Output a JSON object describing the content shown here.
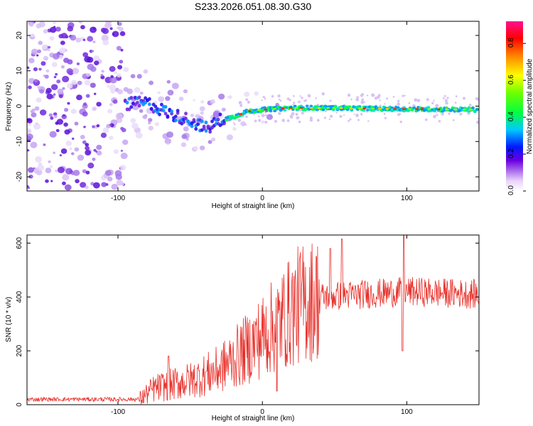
{
  "title": "S233.2026.051.08.30.G30",
  "chart_data": [
    {
      "type": "heatmap",
      "name": "spectrogram",
      "xlabel": "Height of straight line (km)",
      "ylabel": "Frequency (Hz)",
      "xlim": [
        -163,
        150
      ],
      "ylim": [
        -24,
        24
      ],
      "xticks": [
        -100,
        0,
        100
      ],
      "yticks": [
        20,
        10,
        0,
        -10,
        -20
      ],
      "colorbar": {
        "label": "Normalized spectral amplitude",
        "range": [
          0,
          0.92
        ],
        "ticks": [
          "0.0",
          "0.2",
          "0.4",
          "0.6",
          "0.8"
        ]
      },
      "ridge": [
        {
          "x": -95,
          "y": 0.5
        },
        {
          "x": -80,
          "y": 1.0
        },
        {
          "x": -65,
          "y": -2.0
        },
        {
          "x": -50,
          "y": -4.0
        },
        {
          "x": -38,
          "y": -6.5
        },
        {
          "x": -30,
          "y": -4.0
        },
        {
          "x": -20,
          "y": -3.0
        },
        {
          "x": -10,
          "y": -1.5
        },
        {
          "x": 0,
          "y": -1.0
        },
        {
          "x": 20,
          "y": -0.5
        },
        {
          "x": 50,
          "y": -0.5
        },
        {
          "x": 90,
          "y": -0.8
        },
        {
          "x": 150,
          "y": -1.0
        }
      ]
    },
    {
      "type": "line",
      "name": "snr",
      "xlabel": "Height of straight line (km)",
      "ylabel": "SNR (10 * v/v)",
      "xlim": [
        -163,
        150
      ],
      "ylim": [
        0,
        630
      ],
      "xticks": [
        -100,
        0,
        100
      ],
      "yticks": [
        0,
        200,
        400,
        600
      ],
      "color": "#e8302a",
      "trend": [
        {
          "x": -163,
          "y": 20
        },
        {
          "x": -85,
          "y": 20
        },
        {
          "x": -75,
          "y": 60
        },
        {
          "x": -50,
          "y": 90
        },
        {
          "x": -30,
          "y": 130
        },
        {
          "x": -10,
          "y": 210
        },
        {
          "x": 10,
          "y": 300
        },
        {
          "x": 25,
          "y": 370
        },
        {
          "x": 40,
          "y": 400
        },
        {
          "x": 100,
          "y": 420
        },
        {
          "x": 150,
          "y": 410
        }
      ],
      "spikes": [
        {
          "x": -65,
          "y": 180
        },
        {
          "x": 10,
          "y": 50
        },
        {
          "x": 47,
          "y": 580
        },
        {
          "x": 55,
          "y": 615
        },
        {
          "x": 97,
          "y": 200
        },
        {
          "x": 98,
          "y": 630
        }
      ]
    }
  ]
}
